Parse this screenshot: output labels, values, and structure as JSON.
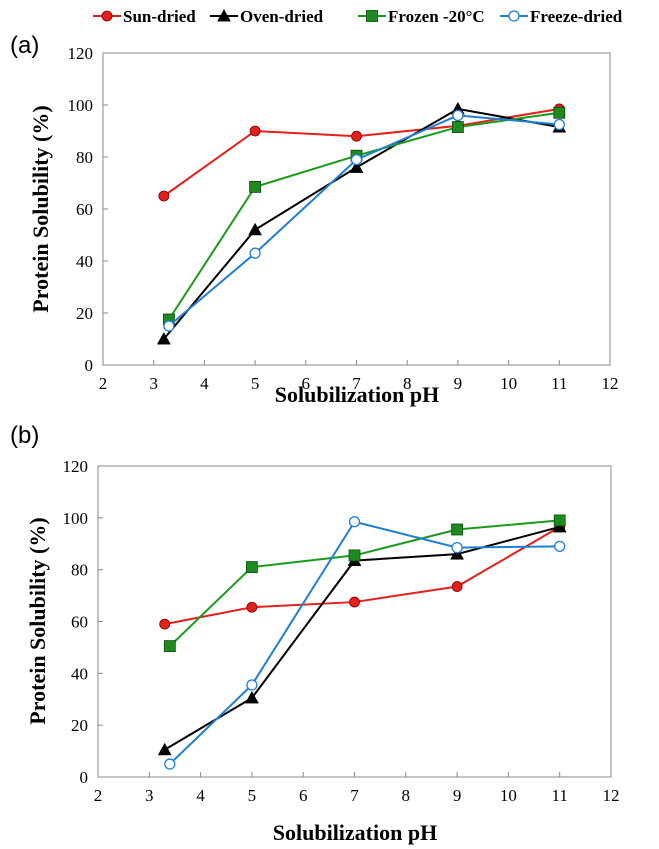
{
  "legend": {
    "placement": "top",
    "entries": [
      {
        "name": "Sun-dried",
        "color": "#e3201b",
        "marker": "circle",
        "fill": "#e3201b"
      },
      {
        "name": "Oven-dried",
        "color": "#000000",
        "marker": "triangle",
        "fill": "#000000"
      },
      {
        "name": "Frozen -20°C",
        "color": "#1a9a1a",
        "marker": "square",
        "fill": "#1f8a1f"
      },
      {
        "name": "Freeze-dried",
        "color": "#1f7fd6",
        "marker": "circle-open",
        "fill": "#ffffff"
      }
    ]
  },
  "chart_data": [
    {
      "type": "line",
      "panel_label": "(a)",
      "xlabel": "Solubilization pH",
      "ylabel": "Protein Solubility (%)",
      "xlim": [
        2,
        12
      ],
      "ylim": [
        0,
        120
      ],
      "xticks": [
        2,
        3,
        4,
        5,
        6,
        7,
        8,
        9,
        10,
        11,
        12
      ],
      "yticks": [
        0,
        20,
        40,
        60,
        80,
        100,
        120
      ],
      "grid": false,
      "series": [
        {
          "name": "Sun-dried",
          "x": [
            3.2,
            5,
            7,
            9,
            11
          ],
          "y": [
            65,
            90,
            88,
            92,
            98.5
          ]
        },
        {
          "name": "Oven-dried",
          "x": [
            3.2,
            5,
            7,
            9,
            11
          ],
          "y": [
            10,
            52,
            76,
            98.5,
            91.5
          ]
        },
        {
          "name": "Frozen -20°C",
          "x": [
            3.3,
            5,
            7,
            9,
            11
          ],
          "y": [
            17.5,
            68.5,
            80.5,
            91.5,
            97
          ]
        },
        {
          "name": "Freeze-dried",
          "x": [
            3.3,
            5,
            7,
            9,
            11
          ],
          "y": [
            15,
            43,
            79,
            96,
            92.5
          ]
        }
      ]
    },
    {
      "type": "line",
      "panel_label": "(b)",
      "xlabel": "Solubilization pH",
      "ylabel": "Protein Solubility (%)",
      "xlim": [
        2,
        12
      ],
      "ylim": [
        0,
        120
      ],
      "xticks": [
        2,
        3,
        4,
        5,
        6,
        7,
        8,
        9,
        10,
        11,
        12
      ],
      "yticks": [
        0,
        20,
        40,
        60,
        80,
        100,
        120
      ],
      "grid": false,
      "series": [
        {
          "name": "Sun-dried",
          "x": [
            3.3,
            5,
            7,
            9,
            11
          ],
          "y": [
            59,
            65.5,
            67.5,
            73.5,
            96.5
          ]
        },
        {
          "name": "Oven-dried",
          "x": [
            3.3,
            5,
            7,
            9,
            11
          ],
          "y": [
            10.5,
            30.5,
            83.5,
            86,
            96.5
          ]
        },
        {
          "name": "Frozen -20°C",
          "x": [
            3.4,
            5,
            7,
            9,
            11
          ],
          "y": [
            50.5,
            81,
            85.5,
            95.5,
            99
          ]
        },
        {
          "name": "Freeze-dried",
          "x": [
            3.4,
            5,
            7,
            9,
            11
          ],
          "y": [
            5,
            35.5,
            98.5,
            88.5,
            89
          ]
        }
      ]
    }
  ]
}
